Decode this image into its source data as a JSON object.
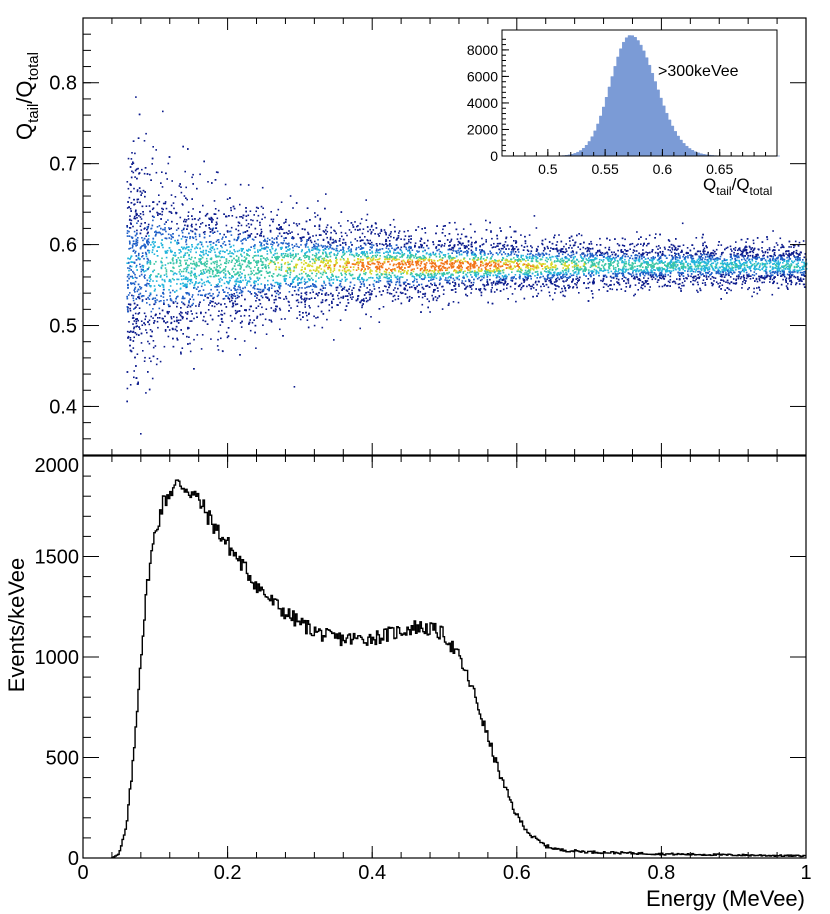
{
  "chart_data": [
    {
      "type": "heatmap",
      "name": "psd-scatter",
      "xlabel": "",
      "ylabel": "Q_tail/Q_total",
      "ylabel_main": "Q",
      "ylabel_sub1": "tail",
      "ylabel_sub2": "total",
      "xlim": [
        0,
        1
      ],
      "ylim": [
        0.34,
        0.88
      ],
      "yticks": [
        0.4,
        0.5,
        0.6,
        0.7,
        0.8
      ],
      "ytick_labels": [
        "0.4",
        "0.5",
        "0.6",
        "0.7",
        "0.8"
      ],
      "band": {
        "energy_threshold": 0.06,
        "center": 0.575,
        "peak_energy": 0.48
      },
      "colors": {
        "low": "#0b1a8c",
        "mid_low": "#1f5fc7",
        "mid": "#22b4dc",
        "mid_high": "#39c6a5",
        "high": "#d7d82a",
        "peak": "#f27418"
      }
    },
    {
      "type": "bar",
      "name": "inset-histogram",
      "title": ">300keVee",
      "xlabel": "Q_tail/Q_total",
      "xlabel_main": "Q",
      "xlabel_sub1": "tail",
      "xlabel_sub2": "total",
      "xlim": [
        0.46,
        0.7
      ],
      "ylim": [
        0,
        9500
      ],
      "xticks": [
        0.5,
        0.55,
        0.6,
        0.65
      ],
      "xtick_labels": [
        "0.5",
        "0.55",
        "0.6",
        "0.65"
      ],
      "yticks": [
        0,
        2000,
        4000,
        6000,
        8000
      ],
      "ytick_labels": [
        "0",
        "2000",
        "4000",
        "6000",
        "8000"
      ],
      "peak_x": 0.571,
      "peak_y": 9100,
      "sigma": 0.0175,
      "fill_color": "#7b9bd6"
    },
    {
      "type": "line",
      "name": "energy-spectrum",
      "xlabel": "Energy (MeVee)",
      "ylabel": "Events/keVee",
      "xlim": [
        0,
        1
      ],
      "ylim": [
        0,
        2000
      ],
      "xticks": [
        0,
        0.2,
        0.4,
        0.6,
        0.8,
        1
      ],
      "xtick_labels": [
        "0",
        "0.2",
        "0.4",
        "0.6",
        "0.8",
        "1"
      ],
      "yticks": [
        0,
        500,
        1000,
        1500,
        2000
      ],
      "ytick_labels": [
        "0",
        "500",
        "1000",
        "1500",
        "2000"
      ],
      "x": [
        0.04,
        0.05,
        0.06,
        0.07,
        0.08,
        0.09,
        0.1,
        0.11,
        0.12,
        0.13,
        0.14,
        0.15,
        0.16,
        0.18,
        0.2,
        0.22,
        0.24,
        0.26,
        0.28,
        0.3,
        0.32,
        0.34,
        0.36,
        0.38,
        0.4,
        0.42,
        0.44,
        0.46,
        0.48,
        0.5,
        0.52,
        0.54,
        0.56,
        0.58,
        0.6,
        0.62,
        0.64,
        0.66,
        0.7,
        0.75,
        0.8,
        0.9,
        1.0
      ],
      "y": [
        0,
        20,
        150,
        500,
        1000,
        1400,
        1620,
        1760,
        1820,
        1860,
        1850,
        1820,
        1780,
        1660,
        1560,
        1460,
        1360,
        1280,
        1220,
        1170,
        1130,
        1100,
        1090,
        1090,
        1095,
        1110,
        1130,
        1150,
        1140,
        1110,
        1000,
        830,
        600,
        380,
        210,
        110,
        60,
        40,
        30,
        25,
        20,
        15,
        10
      ],
      "line_color": "#000000"
    }
  ]
}
